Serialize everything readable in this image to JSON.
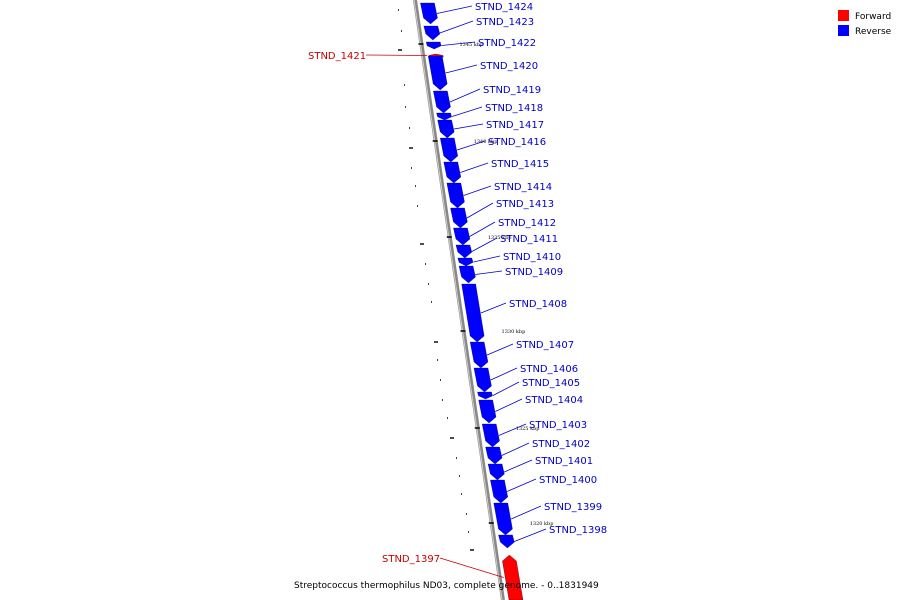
{
  "legend": [
    {
      "label": "Forward",
      "color": "#ff0000"
    },
    {
      "label": "Reverse",
      "color": "#0000ff"
    }
  ],
  "caption": "Streptococcus thermophilus ND03, complete genome. - 0..1831949",
  "colors": {
    "forward": "#ff0000",
    "reverse": "#0000ff",
    "forward_label": "#cc0000",
    "reverse_label": "#0000cc",
    "axis": "#888888"
  },
  "ticks": [
    "1345 kbp",
    "1340 kbp",
    "1335 kbp",
    "1330 kbp",
    "1325 kbp",
    "1320 kbp"
  ],
  "genes": [
    {
      "name": "STND_1424",
      "strand": "reverse"
    },
    {
      "name": "STND_1423",
      "strand": "reverse"
    },
    {
      "name": "STND_1422",
      "strand": "reverse"
    },
    {
      "name": "STND_1421",
      "strand": "forward"
    },
    {
      "name": "STND_1420",
      "strand": "reverse"
    },
    {
      "name": "STND_1419",
      "strand": "reverse"
    },
    {
      "name": "STND_1418",
      "strand": "reverse"
    },
    {
      "name": "STND_1417",
      "strand": "reverse"
    },
    {
      "name": "STND_1416",
      "strand": "reverse"
    },
    {
      "name": "STND_1415",
      "strand": "reverse"
    },
    {
      "name": "STND_1414",
      "strand": "reverse"
    },
    {
      "name": "STND_1413",
      "strand": "reverse"
    },
    {
      "name": "STND_1412",
      "strand": "reverse"
    },
    {
      "name": "STND_1411",
      "strand": "reverse"
    },
    {
      "name": "STND_1410",
      "strand": "reverse"
    },
    {
      "name": "STND_1409",
      "strand": "reverse"
    },
    {
      "name": "STND_1408",
      "strand": "reverse"
    },
    {
      "name": "STND_1407",
      "strand": "reverse"
    },
    {
      "name": "STND_1406",
      "strand": "reverse"
    },
    {
      "name": "STND_1405",
      "strand": "reverse"
    },
    {
      "name": "STND_1404",
      "strand": "reverse"
    },
    {
      "name": "STND_1403",
      "strand": "reverse"
    },
    {
      "name": "STND_1402",
      "strand": "reverse"
    },
    {
      "name": "STND_1401",
      "strand": "reverse"
    },
    {
      "name": "STND_1400",
      "strand": "reverse"
    },
    {
      "name": "STND_1399",
      "strand": "reverse"
    },
    {
      "name": "STND_1398",
      "strand": "reverse"
    },
    {
      "name": "STND_1397",
      "strand": "forward"
    }
  ]
}
